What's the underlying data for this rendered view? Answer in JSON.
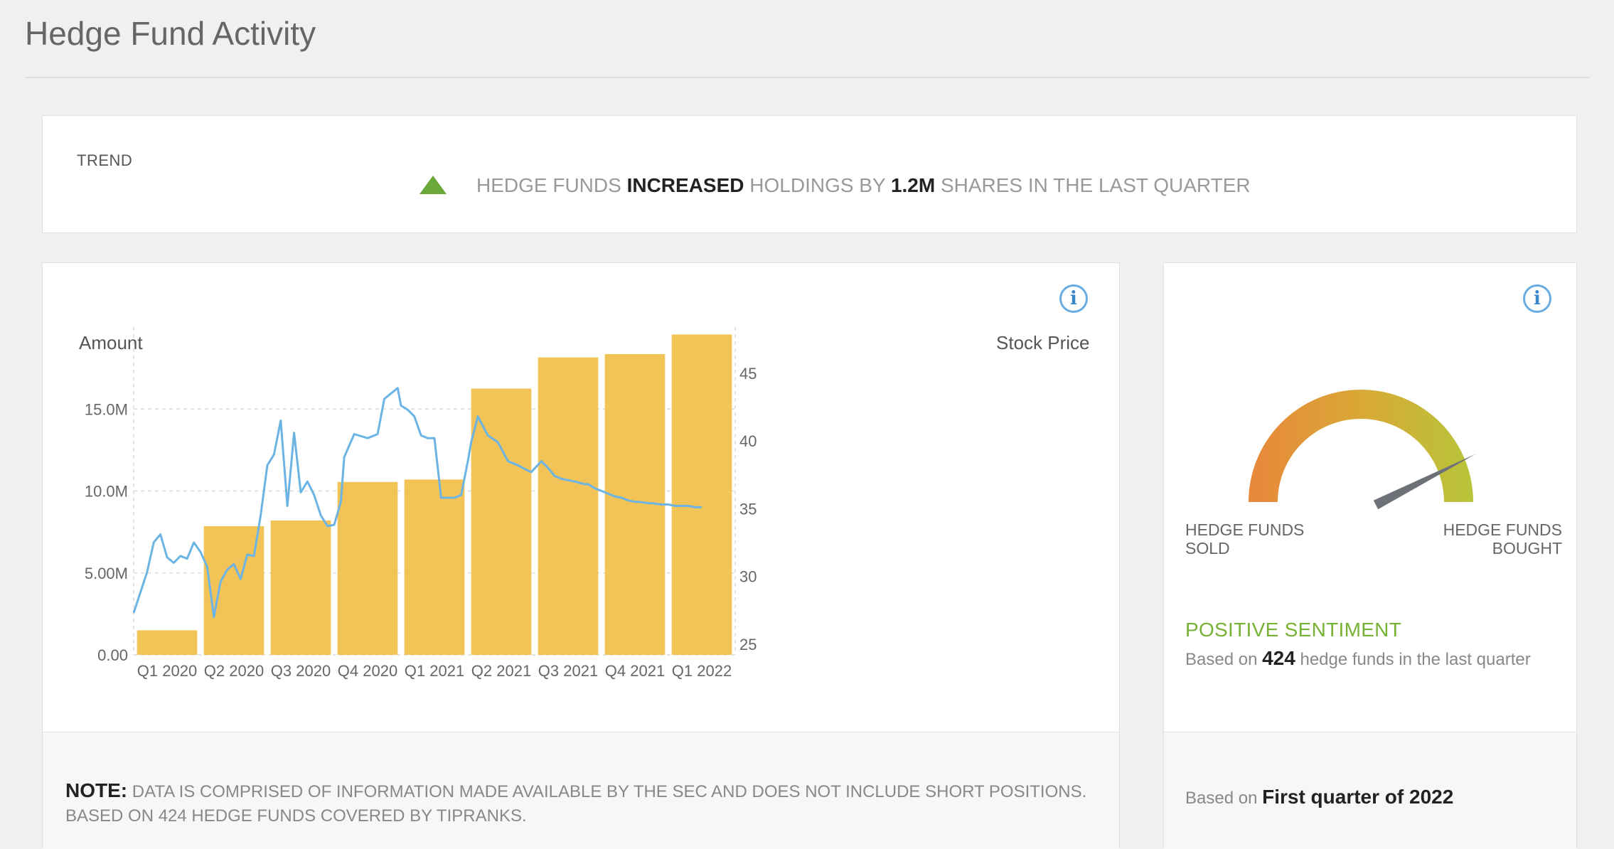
{
  "page": {
    "title": "Hedge Fund Activity"
  },
  "trend": {
    "label": "TREND",
    "direction": "up",
    "prefix": "HEDGE FUNDS ",
    "verb": "INCREASED",
    "middle": " HOLDINGS BY ",
    "amount": "1.2M",
    "suffix": " SHARES IN THE LAST QUARTER",
    "arrow_color": "#6aa83a"
  },
  "chart_panel": {
    "left_axis_title": "Amount",
    "right_axis_title": "Stock Price",
    "info_icon": "info-icon"
  },
  "chart_data": {
    "type": "bar",
    "categories": [
      "Q1 2020",
      "Q2 2020",
      "Q3 2020",
      "Q4 2020",
      "Q1 2021",
      "Q2 2021",
      "Q3 2021",
      "Q4 2021",
      "Q1 2022"
    ],
    "left_axis": {
      "title": "Amount",
      "ylim": [
        0,
        20
      ],
      "ticks": [
        0,
        5,
        10,
        15
      ],
      "tick_labels": [
        "0.00",
        "5.00M",
        "10.0M",
        "15.0M"
      ]
    },
    "right_axis": {
      "title": "Stock Price",
      "ylim": [
        24.2,
        48.4
      ],
      "ticks": [
        25,
        30,
        35,
        40,
        45
      ],
      "tick_labels": [
        "25",
        "30",
        "35",
        "40",
        "45"
      ]
    },
    "series": [
      {
        "type": "bar",
        "axis": "left",
        "color": "#f2c357",
        "values": [
          1.5,
          7.85,
          8.2,
          10.55,
          10.7,
          16.25,
          18.15,
          18.35,
          19.55
        ]
      },
      {
        "type": "line",
        "axis": "right",
        "color": "#6cb4e4",
        "x": [
          0,
          0.1,
          0.2,
          0.3,
          0.4,
          0.5,
          0.6,
          0.7,
          0.8,
          0.9,
          1,
          1.1,
          1.2,
          1.3,
          1.4,
          1.5,
          1.6,
          1.7,
          1.8,
          1.9,
          2,
          2.1,
          2.2,
          2.3,
          2.4,
          2.5,
          2.6,
          2.7,
          2.8,
          2.9,
          3,
          3.1,
          3.15,
          3.3,
          3.5,
          3.65,
          3.75,
          3.85,
          3.95,
          4,
          4.1,
          4.2,
          4.3,
          4.4,
          4.5,
          4.6,
          4.7,
          4.8,
          4.9,
          5,
          5.05,
          5.15,
          5.3,
          5.45,
          5.6,
          5.75,
          5.9,
          5.95,
          6.1,
          6.2,
          6.3,
          6.4,
          6.5,
          6.6,
          6.75,
          6.8,
          6.9,
          7,
          7.1,
          7.2,
          7.3,
          7.4,
          7.5,
          7.55,
          7.7,
          7.75,
          7.9,
          8,
          8.1,
          8.2,
          8.3,
          8.4,
          8.5
        ],
        "y": [
          27.3,
          28.8,
          30.3,
          32.5,
          33.1,
          31.4,
          31,
          31.5,
          31.3,
          32.5,
          31.8,
          30.7,
          27,
          29.6,
          30.5,
          30.9,
          29.8,
          31.6,
          31.5,
          34.5,
          38.2,
          39,
          41.5,
          35.2,
          40.6,
          36.2,
          37,
          36,
          34.5,
          33.7,
          33.8,
          35.5,
          38.8,
          40.5,
          40.2,
          40.5,
          43.1,
          43.5,
          43.9,
          42.6,
          42.3,
          41.8,
          40.4,
          40.2,
          40.2,
          35.8,
          35.8,
          35.8,
          36,
          38.5,
          39.9,
          41.8,
          40.4,
          39.9,
          38.5,
          38.2,
          37.8,
          37.7,
          38.5,
          38,
          37.4,
          37.2,
          37.1,
          37,
          36.8,
          36.8,
          36.5,
          36.3,
          36.1,
          35.9,
          35.8,
          35.6,
          35.5,
          35.5,
          35.4,
          35.4,
          35.3,
          35.3,
          35.2,
          35.2,
          35.2,
          35.1,
          35.1
        ]
      }
    ],
    "grid": true
  },
  "sentiment": {
    "info_icon": "info-icon",
    "left_label_line1": "HEDGE FUNDS",
    "left_label_line2": "SOLD",
    "right_label_line1": "HEDGE FUNDS",
    "right_label_line2": "BOUGHT",
    "gauge_value": 0.85,
    "title": "POSITIVE SENTIMENT",
    "based_prefix": "Based on ",
    "based_count": "424",
    "based_suffix": " hedge funds in the last quarter",
    "period_prefix": "Based on ",
    "period_value": "First quarter of 2022",
    "colors": {
      "sold": "#e8873a",
      "mid": "#d9a836",
      "bought": "#b7c53a",
      "needle": "#6e7178"
    }
  },
  "note": {
    "label": "NOTE:",
    "text": " DATA IS COMPRISED OF INFORMATION MADE AVAILABLE BY THE SEC AND DOES NOT INCLUDE SHORT POSITIONS. BASED ON 424 HEDGE FUNDS COVERED BY TIPRANKS."
  }
}
